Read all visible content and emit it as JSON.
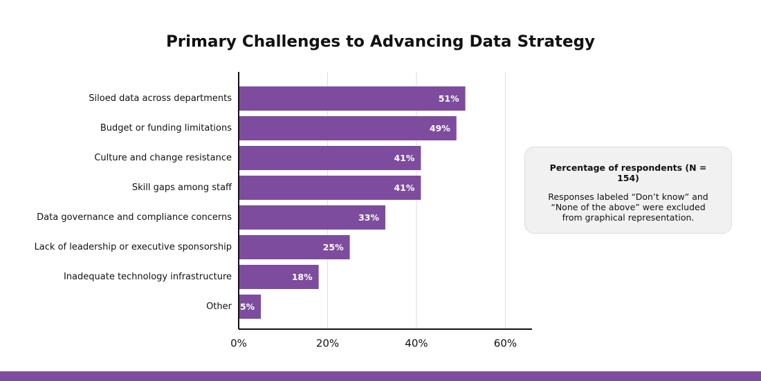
{
  "chart_data": {
    "type": "bar",
    "orientation": "horizontal",
    "title": "Primary Challenges to Advancing Data Strategy",
    "categories": [
      "Siloed data across departments",
      "Budget or funding limitations",
      "Culture and change resistance",
      "Skill gaps among staff",
      "Data governance and compliance concerns",
      "Lack of leadership or executive sponsorship",
      "Inadequate technology infrastructure",
      "Other"
    ],
    "values": [
      51,
      49,
      41,
      41,
      33,
      25,
      18,
      5
    ],
    "value_labels": [
      "51%",
      "49%",
      "41%",
      "41%",
      "33%",
      "25%",
      "18%",
      "5%"
    ],
    "color": "#7e4c9e",
    "xlim": [
      0,
      66
    ],
    "xticks": [
      {
        "value": 0,
        "label": "0%"
      },
      {
        "value": 20,
        "label": "20%"
      },
      {
        "value": 40,
        "label": "40%"
      },
      {
        "value": 60,
        "label": "60%"
      }
    ],
    "grid": true,
    "note": {
      "title": "Percentage of respondents (N = 154)",
      "text": "Responses labeled “Don’t know” and “None of the above” were excluded from graphical representation."
    }
  }
}
